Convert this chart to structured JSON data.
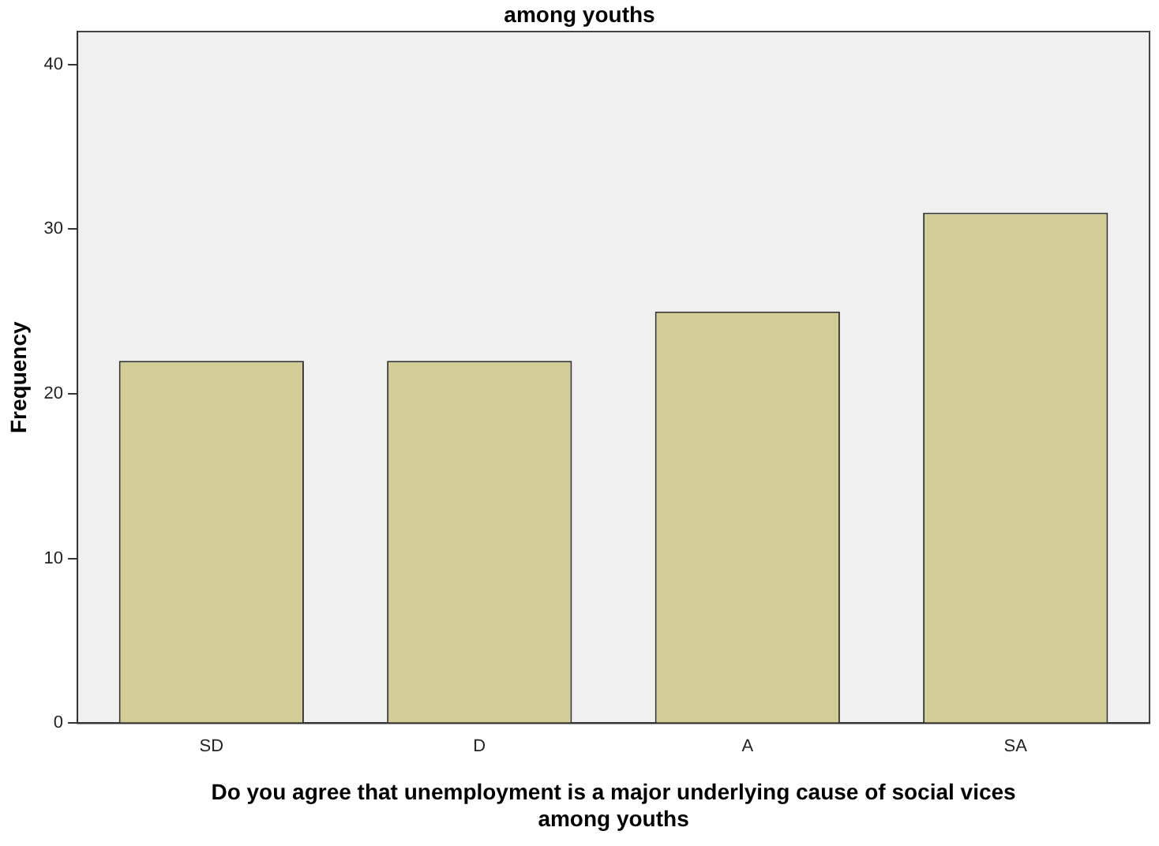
{
  "chart_data": {
    "type": "bar",
    "title": "among youths",
    "xlabel": "Do you agree that unemployment is a major underlying cause of social vices\namong youths",
    "ylabel": "Frequency",
    "categories": [
      "SD",
      "D",
      "A",
      "SA"
    ],
    "values": [
      22,
      22,
      25,
      31
    ],
    "color": "#d2cd96",
    "ylim": [
      0,
      42
    ],
    "yticks": [
      0,
      10,
      20,
      30,
      40
    ],
    "grid": false,
    "legend": false
  }
}
